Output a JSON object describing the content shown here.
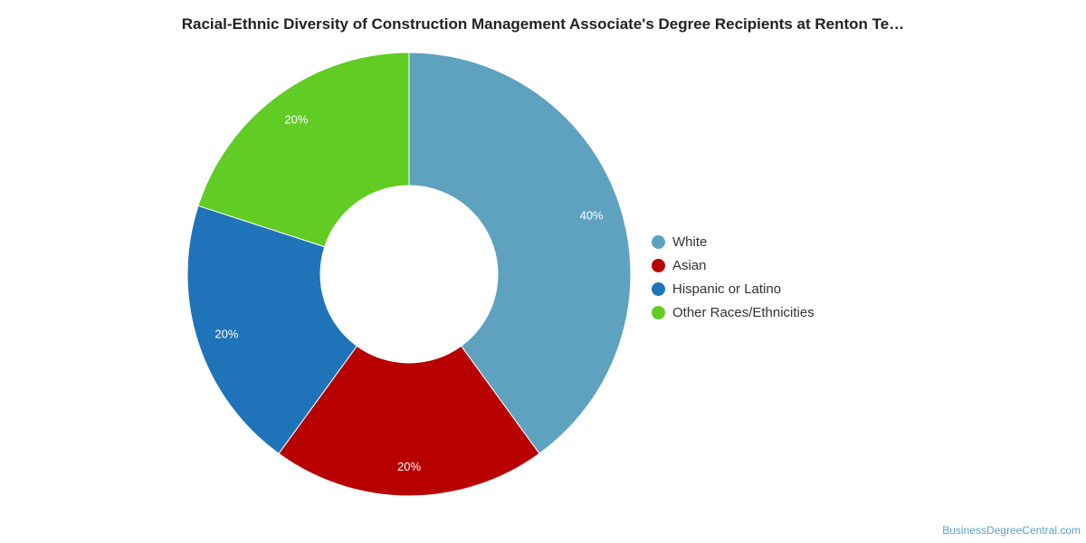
{
  "chart_data": {
    "type": "pie",
    "title": "Racial-Ethnic Diversity of Construction Management Associate's Degree Recipients at Renton Te…",
    "categories": [
      "White",
      "Asian",
      "Hispanic or Latino",
      "Other Races/Ethnicities"
    ],
    "values": [
      40,
      20,
      20,
      20
    ],
    "labels": [
      "40%",
      "20%",
      "20%",
      "20%"
    ],
    "colors": [
      "#5fa2bf",
      "#b80000",
      "#1f73b8",
      "#61cc23"
    ],
    "donut": true,
    "legend_position": "right"
  },
  "credit": "BusinessDegreeCentral.com"
}
